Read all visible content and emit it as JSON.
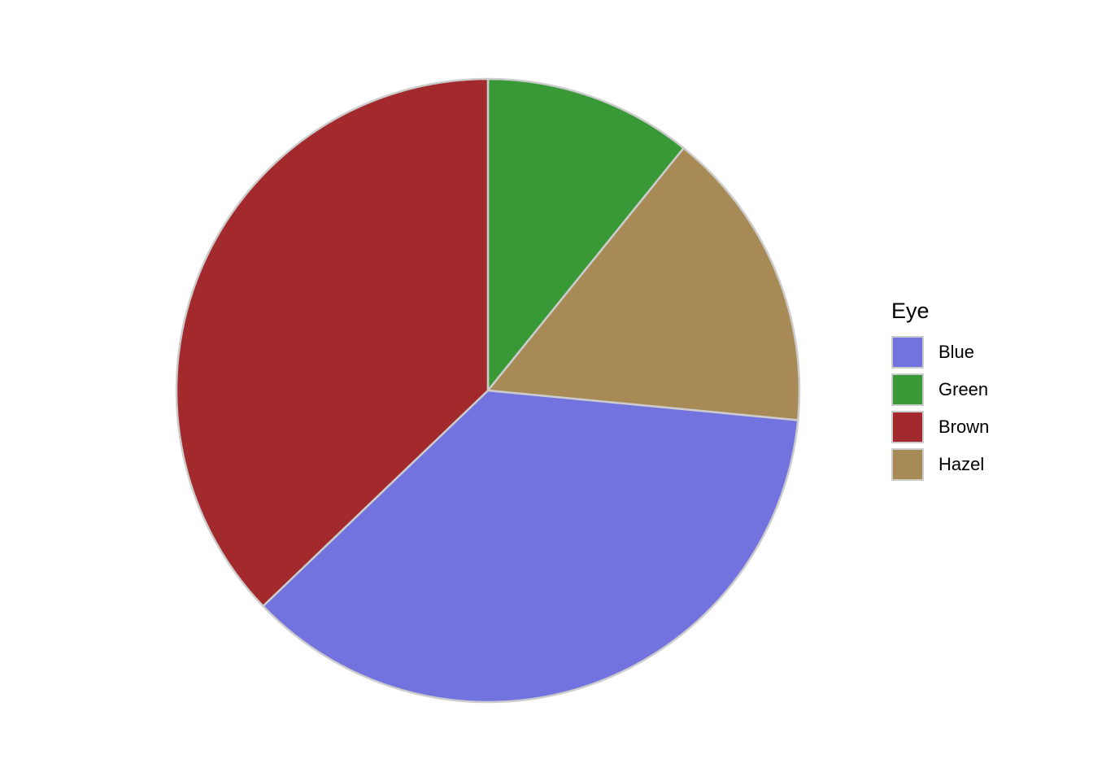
{
  "chart_data": {
    "type": "pie",
    "legend_title": "Eye",
    "legend_position": "right",
    "categories": [
      "Blue",
      "Green",
      "Brown",
      "Hazel"
    ],
    "values": [
      215,
      64,
      220,
      93
    ],
    "colors": [
      "#7373DF",
      "#399937",
      "#A2292C",
      "#A88A57"
    ],
    "slice_order_clockwise_from_top": [
      "Green",
      "Hazel",
      "Blue",
      "Brown"
    ],
    "slice_border_color": "#CCCCCC"
  }
}
